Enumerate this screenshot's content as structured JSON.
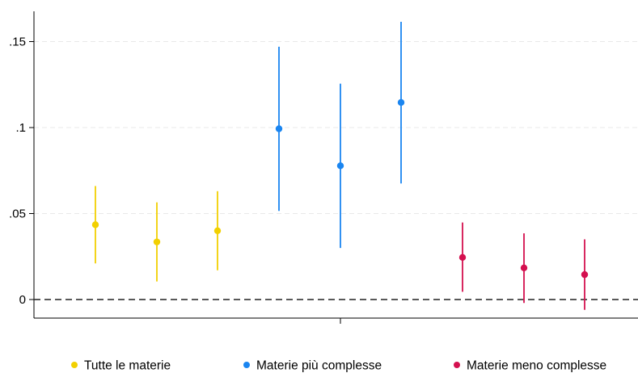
{
  "chart_data": {
    "type": "scatter",
    "subtype": "coefficient-plot-with-confidence-intervals",
    "title": "",
    "xlabel": "",
    "ylabel": "",
    "ylim": [
      -0.01,
      0.165
    ],
    "y_ticks": [
      {
        "value": 0.15,
        "label": ".15"
      },
      {
        "value": 0.1,
        "label": ".1"
      },
      {
        "value": 0.05,
        "label": ".05"
      },
      {
        "value": 0,
        "label": "0"
      }
    ],
    "reference_line": {
      "y": 0,
      "style": "dashed"
    },
    "grid": "horizontal dashed",
    "legend_position": "bottom",
    "series": [
      {
        "name": "Tutte le materie",
        "color": "#f2d000",
        "points": [
          {
            "x": 1,
            "estimate": 0.0435,
            "ci_low": 0.021,
            "ci_high": 0.066
          },
          {
            "x": 2,
            "estimate": 0.0335,
            "ci_low": 0.0105,
            "ci_high": 0.0565
          },
          {
            "x": 3,
            "estimate": 0.04,
            "ci_low": 0.017,
            "ci_high": 0.063
          }
        ]
      },
      {
        "name": "Materie più complesse",
        "color": "#1a85f0",
        "points": [
          {
            "x": 4,
            "estimate": 0.0993,
            "ci_low": 0.0515,
            "ci_high": 0.147
          },
          {
            "x": 5,
            "estimate": 0.0778,
            "ci_low": 0.03,
            "ci_high": 0.1255
          },
          {
            "x": 6,
            "estimate": 0.1146,
            "ci_low": 0.0675,
            "ci_high": 0.1615
          }
        ]
      },
      {
        "name": "Materie meno complesse",
        "color": "#d4104f",
        "points": [
          {
            "x": 7,
            "estimate": 0.0245,
            "ci_low": 0.0045,
            "ci_high": 0.0448
          },
          {
            "x": 8,
            "estimate": 0.0184,
            "ci_low": -0.002,
            "ci_high": 0.0385
          },
          {
            "x": 9,
            "estimate": 0.0145,
            "ci_low": -0.006,
            "ci_high": 0.035
          }
        ]
      }
    ]
  }
}
